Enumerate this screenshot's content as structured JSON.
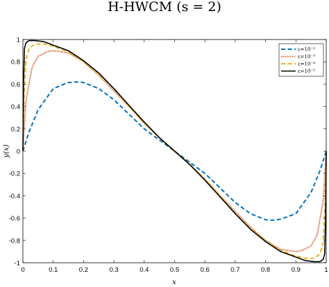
{
  "chart_data": {
    "type": "line",
    "title": "H-HWCM (s = 2)",
    "xlabel": "x",
    "ylabel": "y(x)",
    "xlim": [
      0,
      1
    ],
    "ylim": [
      -1,
      1
    ],
    "xticks": [
      "0",
      "0.1",
      "0.2",
      "0.3",
      "0.4",
      "0.5",
      "0.6",
      "0.7",
      "0.8",
      "0.9",
      "1"
    ],
    "yticks": [
      "-1",
      "-0.8",
      "-0.6",
      "-0.4",
      "-0.2",
      "0",
      "0.2",
      "0.4",
      "0.6",
      "0.8",
      "1"
    ],
    "grid": false,
    "legend_position": "top-right",
    "series": [
      {
        "name": "ε=10⁻²",
        "color": "#0072bd",
        "style": "dashed",
        "x": [
          0,
          0.02,
          0.05,
          0.1,
          0.15,
          0.18,
          0.2,
          0.25,
          0.3,
          0.35,
          0.4,
          0.45,
          0.5,
          0.55,
          0.6,
          0.65,
          0.7,
          0.75,
          0.8,
          0.82,
          0.85,
          0.9,
          0.95,
          0.98,
          1
        ],
        "y": [
          0,
          0.17,
          0.37,
          0.56,
          0.615,
          0.62,
          0.615,
          0.56,
          0.46,
          0.33,
          0.2,
          0.1,
          0,
          -0.1,
          -0.2,
          -0.33,
          -0.46,
          -0.56,
          -0.615,
          -0.62,
          -0.61,
          -0.56,
          -0.37,
          -0.17,
          0
        ]
      },
      {
        "name": "ε=10⁻³",
        "color": "#d95319",
        "style": "dotted",
        "x": [
          0,
          0.01,
          0.03,
          0.05,
          0.08,
          0.1,
          0.15,
          0.2,
          0.25,
          0.3,
          0.35,
          0.4,
          0.45,
          0.5,
          0.55,
          0.6,
          0.65,
          0.7,
          0.75,
          0.8,
          0.85,
          0.9,
          0.92,
          0.95,
          0.97,
          0.99,
          1
        ],
        "y": [
          0,
          0.45,
          0.75,
          0.85,
          0.89,
          0.9,
          0.88,
          0.8,
          0.68,
          0.54,
          0.4,
          0.25,
          0.12,
          0,
          -0.12,
          -0.25,
          -0.4,
          -0.54,
          -0.68,
          -0.8,
          -0.88,
          -0.9,
          -0.89,
          -0.85,
          -0.75,
          -0.45,
          0
        ]
      },
      {
        "name": "ε=10⁻⁴",
        "color": "#edb120",
        "style": "dashed",
        "x": [
          0,
          0.004,
          0.01,
          0.02,
          0.04,
          0.07,
          0.1,
          0.15,
          0.2,
          0.25,
          0.3,
          0.35,
          0.4,
          0.45,
          0.5,
          0.55,
          0.6,
          0.65,
          0.7,
          0.75,
          0.8,
          0.85,
          0.9,
          0.93,
          0.96,
          0.98,
          0.99,
          0.996,
          1
        ],
        "y": [
          0,
          0.5,
          0.82,
          0.92,
          0.96,
          0.96,
          0.94,
          0.89,
          0.8,
          0.69,
          0.56,
          0.4,
          0.25,
          0.12,
          0,
          -0.12,
          -0.25,
          -0.4,
          -0.56,
          -0.69,
          -0.8,
          -0.89,
          -0.94,
          -0.96,
          -0.96,
          -0.92,
          -0.82,
          -0.5,
          0
        ]
      },
      {
        "name": "ε=10⁻⁵",
        "color": "#000000",
        "style": "solid",
        "x": [
          0,
          0.002,
          0.005,
          0.01,
          0.02,
          0.04,
          0.07,
          0.1,
          0.15,
          0.2,
          0.25,
          0.3,
          0.35,
          0.4,
          0.45,
          0.5,
          0.55,
          0.6,
          0.65,
          0.7,
          0.75,
          0.8,
          0.85,
          0.9,
          0.93,
          0.96,
          0.98,
          0.99,
          0.995,
          0.998,
          1
        ],
        "y": [
          0,
          0.6,
          0.92,
          0.97,
          0.99,
          0.99,
          0.98,
          0.95,
          0.9,
          0.81,
          0.7,
          0.56,
          0.41,
          0.26,
          0.12,
          0,
          -0.12,
          -0.26,
          -0.41,
          -0.56,
          -0.7,
          -0.81,
          -0.9,
          -0.95,
          -0.98,
          -0.99,
          -0.99,
          -0.97,
          -0.92,
          -0.6,
          0
        ]
      }
    ]
  }
}
